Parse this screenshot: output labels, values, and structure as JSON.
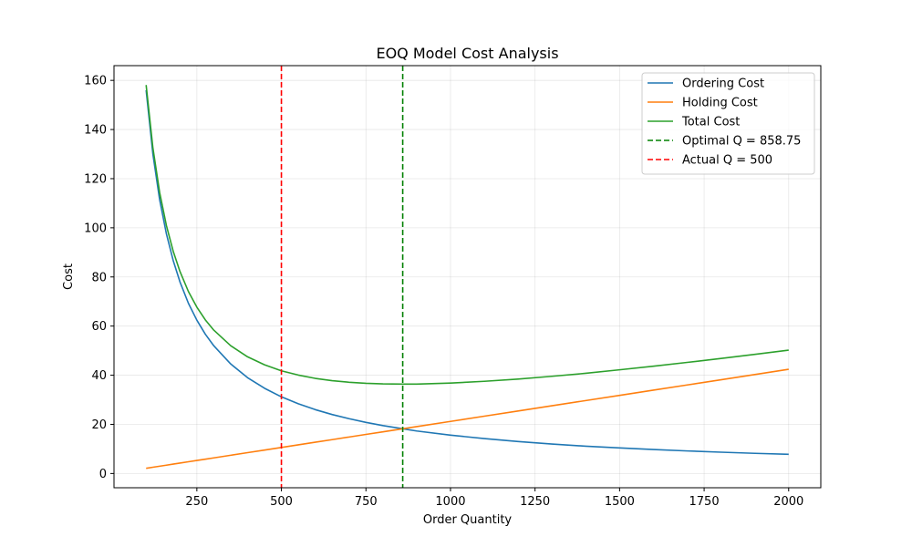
{
  "chart_data": {
    "type": "line",
    "title": "EOQ Model Cost Analysis",
    "xlabel": "Order Quantity",
    "ylabel": "Cost",
    "xlim": [
      5,
      2095
    ],
    "ylim": [
      -5.8,
      166
    ],
    "xticks": [
      250,
      500,
      750,
      1000,
      1250,
      1500,
      1750,
      2000
    ],
    "xtick_labels": [
      "250",
      "500",
      "750",
      "1000",
      "1250",
      "1500",
      "1750",
      "2000"
    ],
    "yticks": [
      0,
      20,
      40,
      60,
      80,
      100,
      120,
      140,
      160
    ],
    "ytick_labels": [
      "0",
      "20",
      "40",
      "60",
      "80",
      "100",
      "120",
      "140",
      "160"
    ],
    "grid": true,
    "legend_position": "top-right",
    "x": [
      100,
      120,
      140,
      160,
      180,
      200,
      225,
      250,
      275,
      300,
      350,
      400,
      450,
      500,
      550,
      600,
      650,
      700,
      750,
      800,
      858.75,
      900,
      1000,
      1100,
      1200,
      1300,
      1400,
      1500,
      1600,
      1700,
      1800,
      1900,
      2000
    ],
    "series": [
      {
        "name": "Ordering Cost",
        "color": "#1f77b4",
        "values": [
          156.0,
          130.0,
          111.4,
          97.5,
          86.7,
          78.0,
          69.3,
          62.4,
          56.7,
          52.0,
          44.6,
          39.0,
          34.7,
          31.2,
          28.4,
          26.0,
          24.0,
          22.3,
          20.8,
          19.5,
          18.2,
          17.3,
          15.6,
          14.2,
          13.0,
          12.0,
          11.1,
          10.4,
          9.75,
          9.18,
          8.67,
          8.21,
          7.8
        ]
      },
      {
        "name": "Holding Cost",
        "color": "#ff7f0e",
        "values": [
          2.12,
          2.54,
          2.97,
          3.39,
          3.82,
          4.24,
          4.77,
          5.3,
          5.83,
          6.36,
          7.42,
          8.48,
          9.54,
          10.6,
          11.66,
          12.72,
          13.78,
          14.84,
          15.9,
          16.96,
          18.2,
          19.08,
          21.2,
          23.32,
          25.44,
          27.56,
          29.68,
          31.8,
          33.92,
          36.04,
          38.16,
          40.28,
          42.4
        ]
      },
      {
        "name": "Total Cost",
        "color": "#2ca02c",
        "values": [
          158.12,
          132.54,
          114.37,
          100.89,
          90.49,
          82.24,
          74.07,
          67.7,
          62.53,
          58.36,
          52.02,
          47.48,
          44.24,
          41.8,
          40.06,
          38.72,
          37.78,
          37.14,
          36.7,
          36.46,
          36.4,
          36.38,
          36.8,
          37.52,
          38.44,
          39.56,
          40.78,
          42.2,
          43.67,
          45.22,
          46.83,
          48.49,
          50.2
        ]
      }
    ],
    "vlines": [
      {
        "name": "Optimal Q = 858.75",
        "x": 858.75,
        "color": "#008000",
        "style": "dashed"
      },
      {
        "name": "Actual Q = 500",
        "x": 500,
        "color": "#ff0000",
        "style": "dashed"
      }
    ]
  }
}
